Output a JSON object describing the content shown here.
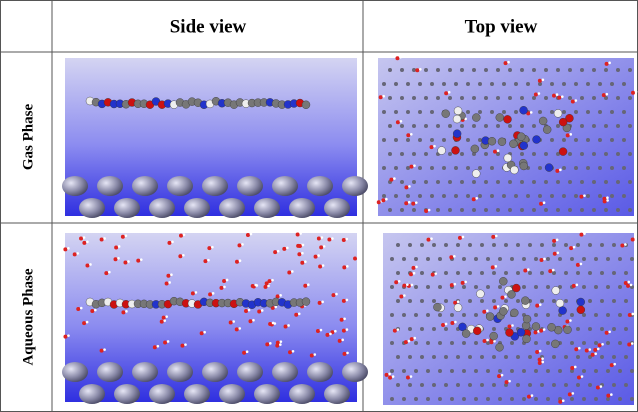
{
  "header": {
    "columns": [
      "Side view",
      "Top view"
    ]
  },
  "rows": [
    {
      "label": "Gas Phase"
    },
    {
      "label": "Aqueous Phase"
    }
  ]
}
